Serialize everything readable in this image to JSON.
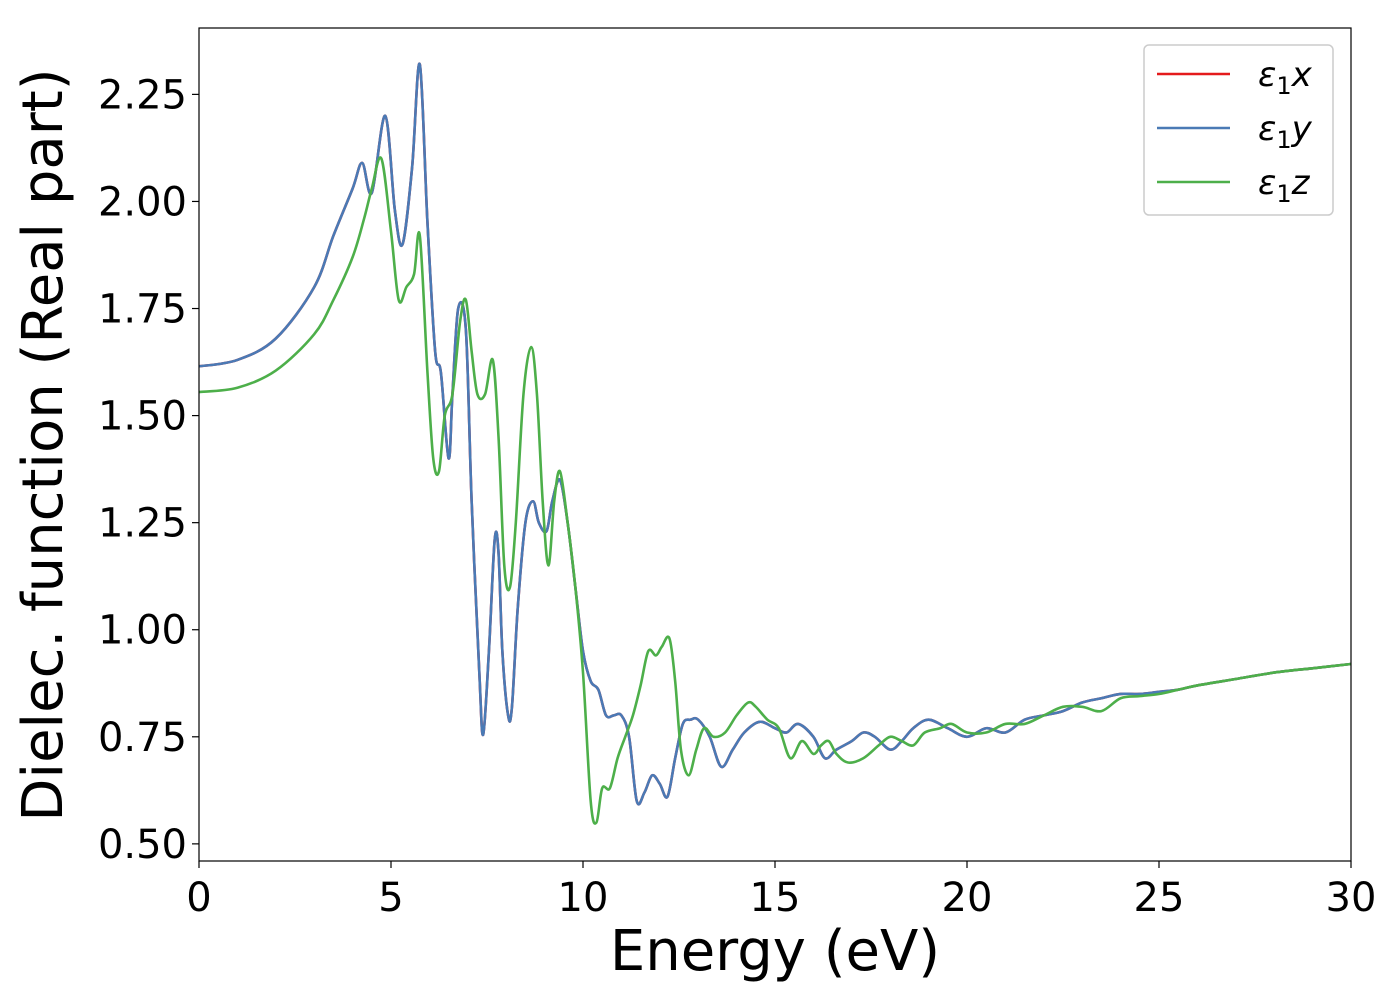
{
  "chart_data": {
    "type": "line",
    "title": "",
    "xlabel": "Energy (eV)",
    "ylabel": "Dielec. function (Real part)",
    "xlim": [
      0,
      30
    ],
    "ylim": [
      0.46,
      2.405
    ],
    "xticks": [
      0,
      5,
      10,
      15,
      20,
      25,
      30
    ],
    "xtick_labels": [
      "0",
      "5",
      "10",
      "15",
      "20",
      "25",
      "30"
    ],
    "yticks": [
      0.5,
      0.75,
      1.0,
      1.25,
      1.5,
      1.75,
      2.0,
      2.25
    ],
    "ytick_labels": [
      "0.50",
      "0.75",
      "1.00",
      "1.25",
      "1.50",
      "1.75",
      "2.00",
      "2.25"
    ],
    "grid": false,
    "legend_position": "top-right",
    "series": [
      {
        "name": "ε₁x",
        "legend_label": {
          "base": "ε",
          "sub": "1",
          "axis": "x"
        },
        "color": "#e41a1c",
        "x": [
          0,
          1,
          2,
          3,
          3.5,
          4,
          4.25,
          4.5,
          4.85,
          5.1,
          5.3,
          5.55,
          5.75,
          5.95,
          6.15,
          6.3,
          6.5,
          6.6,
          6.75,
          6.95,
          7.1,
          7.3,
          7.4,
          7.55,
          7.7,
          7.8,
          7.9,
          8.05,
          8.15,
          8.3,
          8.5,
          8.7,
          8.85,
          9.05,
          9.2,
          9.4,
          9.6,
          9.8,
          10.0,
          10.2,
          10.4,
          10.6,
          10.8,
          11.0,
          11.2,
          11.4,
          11.6,
          11.8,
          12.0,
          12.2,
          12.4,
          12.6,
          12.8,
          13.0,
          13.3,
          13.6,
          13.9,
          14.2,
          14.6,
          15.0,
          15.3,
          15.6,
          16.0,
          16.3,
          16.6,
          17.0,
          17.3,
          17.6,
          18.0,
          18.3,
          18.6,
          19.0,
          19.5,
          20.0,
          20.5,
          21.0,
          21.5,
          22.0,
          22.5,
          23.0,
          23.5,
          24.0,
          24.5,
          25.0,
          25.5,
          26.0,
          27.0,
          28.0,
          29.0,
          30.0
        ],
        "y": [
          1.615,
          1.63,
          1.68,
          1.8,
          1.92,
          2.03,
          2.09,
          2.02,
          2.2,
          1.98,
          1.9,
          2.08,
          2.32,
          1.95,
          1.65,
          1.6,
          1.4,
          1.55,
          1.75,
          1.7,
          1.3,
          0.9,
          0.755,
          0.95,
          1.21,
          1.18,
          0.95,
          0.8,
          0.82,
          1.05,
          1.25,
          1.3,
          1.25,
          1.23,
          1.3,
          1.35,
          1.25,
          1.1,
          0.95,
          0.88,
          0.86,
          0.8,
          0.8,
          0.8,
          0.75,
          0.6,
          0.62,
          0.66,
          0.64,
          0.61,
          0.7,
          0.78,
          0.79,
          0.79,
          0.75,
          0.68,
          0.72,
          0.76,
          0.785,
          0.77,
          0.76,
          0.78,
          0.75,
          0.7,
          0.72,
          0.74,
          0.76,
          0.75,
          0.72,
          0.74,
          0.77,
          0.79,
          0.77,
          0.75,
          0.77,
          0.76,
          0.79,
          0.8,
          0.81,
          0.83,
          0.84,
          0.85,
          0.85,
          0.855,
          0.86,
          0.87,
          0.885,
          0.9,
          0.91,
          0.92
        ]
      },
      {
        "name": "ε₁y",
        "legend_label": {
          "base": "ε",
          "sub": "1",
          "axis": "y"
        },
        "color": "#4a7ab5",
        "x": [
          0,
          1,
          2,
          3,
          3.5,
          4,
          4.25,
          4.5,
          4.85,
          5.1,
          5.3,
          5.55,
          5.75,
          5.95,
          6.15,
          6.3,
          6.5,
          6.6,
          6.75,
          6.95,
          7.1,
          7.3,
          7.4,
          7.55,
          7.7,
          7.8,
          7.9,
          8.05,
          8.15,
          8.3,
          8.5,
          8.7,
          8.85,
          9.05,
          9.2,
          9.4,
          9.6,
          9.8,
          10.0,
          10.2,
          10.4,
          10.6,
          10.8,
          11.0,
          11.2,
          11.4,
          11.6,
          11.8,
          12.0,
          12.2,
          12.4,
          12.6,
          12.8,
          13.0,
          13.3,
          13.6,
          13.9,
          14.2,
          14.6,
          15.0,
          15.3,
          15.6,
          16.0,
          16.3,
          16.6,
          17.0,
          17.3,
          17.6,
          18.0,
          18.3,
          18.6,
          19.0,
          19.5,
          20.0,
          20.5,
          21.0,
          21.5,
          22.0,
          22.5,
          23.0,
          23.5,
          24.0,
          24.5,
          25.0,
          25.5,
          26.0,
          27.0,
          28.0,
          29.0,
          30.0
        ],
        "y": [
          1.615,
          1.63,
          1.68,
          1.8,
          1.92,
          2.03,
          2.09,
          2.02,
          2.2,
          1.98,
          1.9,
          2.08,
          2.32,
          1.95,
          1.65,
          1.6,
          1.4,
          1.55,
          1.75,
          1.7,
          1.3,
          0.9,
          0.755,
          0.95,
          1.21,
          1.18,
          0.95,
          0.8,
          0.82,
          1.05,
          1.25,
          1.3,
          1.25,
          1.23,
          1.3,
          1.35,
          1.25,
          1.1,
          0.95,
          0.88,
          0.86,
          0.8,
          0.8,
          0.8,
          0.75,
          0.6,
          0.62,
          0.66,
          0.64,
          0.61,
          0.7,
          0.78,
          0.79,
          0.79,
          0.75,
          0.68,
          0.72,
          0.76,
          0.785,
          0.77,
          0.76,
          0.78,
          0.75,
          0.7,
          0.72,
          0.74,
          0.76,
          0.75,
          0.72,
          0.74,
          0.77,
          0.79,
          0.77,
          0.75,
          0.77,
          0.76,
          0.79,
          0.8,
          0.81,
          0.83,
          0.84,
          0.85,
          0.85,
          0.855,
          0.86,
          0.87,
          0.885,
          0.9,
          0.91,
          0.92
        ]
      },
      {
        "name": "ε₁z",
        "legend_label": {
          "base": "ε",
          "sub": "1",
          "axis": "z"
        },
        "color": "#4daf4a",
        "x": [
          0,
          1,
          2,
          3,
          3.5,
          4,
          4.3,
          4.5,
          4.75,
          5.0,
          5.2,
          5.4,
          5.6,
          5.75,
          5.95,
          6.1,
          6.25,
          6.4,
          6.6,
          6.8,
          6.95,
          7.1,
          7.25,
          7.45,
          7.65,
          7.8,
          7.95,
          8.1,
          8.25,
          8.45,
          8.65,
          8.8,
          8.95,
          9.1,
          9.25,
          9.4,
          9.6,
          9.8,
          10.0,
          10.2,
          10.35,
          10.5,
          10.7,
          10.9,
          11.1,
          11.3,
          11.5,
          11.7,
          11.9,
          12.05,
          12.25,
          12.4,
          12.55,
          12.75,
          12.95,
          13.15,
          13.4,
          13.7,
          14.0,
          14.3,
          14.5,
          14.8,
          15.1,
          15.4,
          15.7,
          16.0,
          16.2,
          16.4,
          16.6,
          16.9,
          17.3,
          17.7,
          18.0,
          18.3,
          18.6,
          18.9,
          19.3,
          19.6,
          20.0,
          20.5,
          21.0,
          21.5,
          22.0,
          22.5,
          23.0,
          23.5,
          24.0,
          24.5,
          25.0,
          25.5,
          26.0,
          27.0,
          28.0,
          29.0,
          30.0
        ],
        "y": [
          1.555,
          1.565,
          1.605,
          1.69,
          1.77,
          1.87,
          1.96,
          2.03,
          2.1,
          1.93,
          1.77,
          1.8,
          1.83,
          1.92,
          1.6,
          1.4,
          1.37,
          1.5,
          1.55,
          1.72,
          1.77,
          1.65,
          1.55,
          1.55,
          1.63,
          1.45,
          1.15,
          1.1,
          1.25,
          1.55,
          1.66,
          1.55,
          1.3,
          1.15,
          1.3,
          1.37,
          1.25,
          1.1,
          0.9,
          0.6,
          0.55,
          0.63,
          0.63,
          0.7,
          0.75,
          0.8,
          0.87,
          0.95,
          0.94,
          0.96,
          0.98,
          0.88,
          0.72,
          0.66,
          0.72,
          0.77,
          0.75,
          0.76,
          0.8,
          0.83,
          0.82,
          0.79,
          0.77,
          0.7,
          0.74,
          0.71,
          0.73,
          0.74,
          0.71,
          0.69,
          0.7,
          0.73,
          0.75,
          0.74,
          0.73,
          0.76,
          0.77,
          0.78,
          0.76,
          0.76,
          0.78,
          0.78,
          0.8,
          0.82,
          0.82,
          0.81,
          0.84,
          0.845,
          0.85,
          0.86,
          0.87,
          0.885,
          0.9,
          0.91,
          0.92
        ]
      }
    ]
  }
}
